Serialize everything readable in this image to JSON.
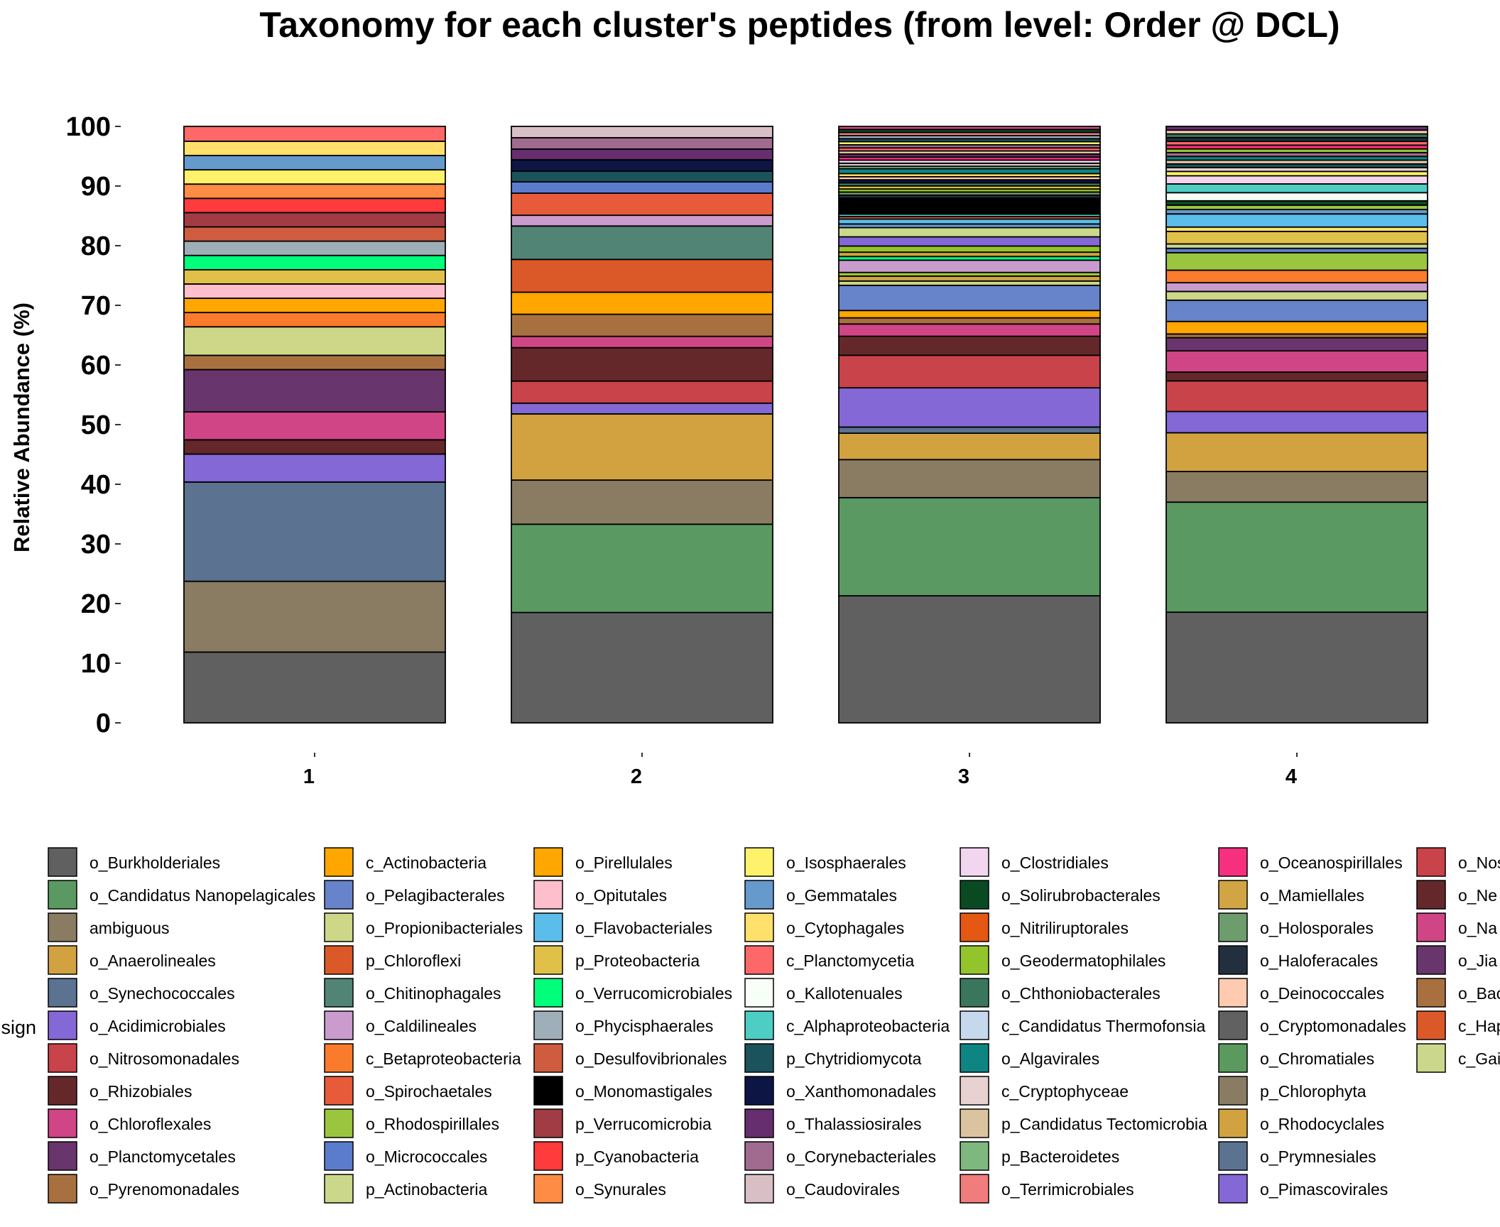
{
  "chart_data": {
    "type": "bar",
    "stacked": true,
    "title": "Taxonomy for each cluster's peptides (from level: Order @ DCL)",
    "ylabel": "Relative Abundance (%)",
    "xlabel": "",
    "ylim": [
      0,
      100
    ],
    "yticks": [
      0,
      10,
      20,
      30,
      40,
      50,
      60,
      70,
      80,
      90,
      100
    ],
    "categories": [
      "1",
      "2",
      "3",
      "4"
    ],
    "legend_title_visible": "sign",
    "legend_position": "bottom",
    "legend": [
      {
        "name": "o_Burkholderiales",
        "color": "#606060"
      },
      {
        "name": "o_Candidatus Nanopelagicales",
        "color": "#5a9a62"
      },
      {
        "name": "ambiguous",
        "color": "#8a7b63"
      },
      {
        "name": "o_Anaerolineales",
        "color": "#d1a23f"
      },
      {
        "name": "o_Synechococcales",
        "color": "#5b7290"
      },
      {
        "name": "o_Acidimicrobiales",
        "color": "#8468d6"
      },
      {
        "name": "o_Nitrosomonadales",
        "color": "#c9434a"
      },
      {
        "name": "o_Rhizobiales",
        "color": "#65282a"
      },
      {
        "name": "o_Chloroflexales",
        "color": "#d04585"
      },
      {
        "name": "o_Planctomycetales",
        "color": "#68356c"
      },
      {
        "name": "o_Pyrenomonadales",
        "color": "#a9703f"
      },
      {
        "name": "c_Actinobacteria",
        "color": "#ffa600"
      },
      {
        "name": "o_Pelagibacterales",
        "color": "#6783c9"
      },
      {
        "name": "o_Propionibacteriales",
        "color": "#cdd787"
      },
      {
        "name": "p_Chloroflexi",
        "color": "#db5828"
      },
      {
        "name": "o_Chitinophagales",
        "color": "#528476"
      },
      {
        "name": "o_Caldilineales",
        "color": "#c99ccd"
      },
      {
        "name": "c_Betaproteobacteria",
        "color": "#fa7b2c"
      },
      {
        "name": "o_Spirochaetales",
        "color": "#e85b3a"
      },
      {
        "name": "o_Rhodospirillales",
        "color": "#9bc53f"
      },
      {
        "name": "o_Micrococcales",
        "color": "#5b7ccc"
      },
      {
        "name": "p_Actinobacteria",
        "color": "#cbd88b"
      },
      {
        "name": "o_Pirellulales",
        "color": "#ffa700"
      },
      {
        "name": "o_Opitutales",
        "color": "#ffbecb"
      },
      {
        "name": "o_Flavobacteriales",
        "color": "#5bbde9"
      },
      {
        "name": "p_Proteobacteria",
        "color": "#e1c04a"
      },
      {
        "name": "o_Verrucomicrobiales",
        "color": "#00ff7a"
      },
      {
        "name": "o_Phycisphaerales",
        "color": "#9eafba"
      },
      {
        "name": "o_Desulfovibrionales",
        "color": "#cf5c3e"
      },
      {
        "name": "o_Monomastigales",
        "color": "#000000"
      },
      {
        "name": "p_Verrucomicrobia",
        "color": "#a13b44"
      },
      {
        "name": "p_Cyanobacteria",
        "color": "#ff3b3b"
      },
      {
        "name": "o_Synurales",
        "color": "#ff8c45"
      },
      {
        "name": "o_Isosphaerales",
        "color": "#fff26b"
      },
      {
        "name": "o_Gemmatales",
        "color": "#6699cc"
      },
      {
        "name": "o_Cytophagales",
        "color": "#ffe06a"
      },
      {
        "name": "c_Planctomycetia",
        "color": "#ff6868"
      },
      {
        "name": "o_Kallotenuales",
        "color": "#f7fff7"
      },
      {
        "name": "c_Alphaproteobacteria",
        "color": "#4ecdc4"
      },
      {
        "name": "p_Chytridiomycota",
        "color": "#1a535c"
      },
      {
        "name": "o_Xanthomonadales",
        "color": "#0d1545"
      },
      {
        "name": "o_Thalassiosirales",
        "color": "#662e6e"
      },
      {
        "name": "o_Corynebacteriales",
        "color": "#a06b8f"
      },
      {
        "name": "o_Caudovirales",
        "color": "#d8bfc6"
      },
      {
        "name": "o_Clostridiales",
        "color": "#f2d5ef"
      },
      {
        "name": "o_Solirubrobacterales",
        "color": "#0a4a22"
      },
      {
        "name": "o_Nitriliruptorales",
        "color": "#e45814"
      },
      {
        "name": "o_Geodermatophilales",
        "color": "#93c42b"
      },
      {
        "name": "o_Chthoniobacterales",
        "color": "#3a765c"
      },
      {
        "name": "c_Candidatus Thermofonsia",
        "color": "#c6d9ec"
      },
      {
        "name": "o_Algavirales",
        "color": "#0f8583"
      },
      {
        "name": "c_Cryptophyceae",
        "color": "#e8d1d1"
      },
      {
        "name": "p_Candidatus Tectomicrobia",
        "color": "#dcc39f"
      },
      {
        "name": "p_Bacteroidetes",
        "color": "#7fb87f"
      },
      {
        "name": "o_Terrimicrobiales",
        "color": "#f07c7c"
      },
      {
        "name": "o_Oceanospirillales",
        "color": "#f72f7f"
      },
      {
        "name": "o_Mamiellales",
        "color": "#d2a544"
      },
      {
        "name": "o_Holosporales",
        "color": "#6d9c6d"
      },
      {
        "name": "o_Haloferacales",
        "color": "#232f3e"
      },
      {
        "name": "o_Deinococcales",
        "color": "#ffcbb0"
      },
      {
        "name": "o_Cryptomonadales",
        "color": "#616161"
      },
      {
        "name": "o_Chromatiales",
        "color": "#5a9a5e"
      },
      {
        "name": "p_Chlorophyta",
        "color": "#8a7b63"
      },
      {
        "name": "o_Rhodocyclales",
        "color": "#d1a23f"
      },
      {
        "name": "o_Prymnesiales",
        "color": "#5b7290"
      },
      {
        "name": "o_Pimascovirales",
        "color": "#8468d6"
      },
      {
        "name": "o_Nos",
        "color": "#c9434a"
      },
      {
        "name": "o_Ne",
        "color": "#65282a"
      },
      {
        "name": "o_Na",
        "color": "#d04585"
      },
      {
        "name": "o_Jia",
        "color": "#68356c"
      },
      {
        "name": "o_Bac",
        "color": "#a9703f"
      },
      {
        "name": "c_Hap",
        "color": "#db5828"
      },
      {
        "name": "c_Gai",
        "color": "#cbd88b"
      }
    ],
    "bars": [
      {
        "category": "1",
        "segments": [
          {
            "name": "o_Burkholderiales",
            "value": 11.9
          },
          {
            "name": "ambiguous",
            "value": 11.9
          },
          {
            "name": "o_Synechococcales",
            "value": 16.7
          },
          {
            "name": "o_Acidimicrobiales",
            "value": 4.7
          },
          {
            "name": "o_Rhizobiales",
            "value": 2.4
          },
          {
            "name": "o_Chloroflexales",
            "value": 4.7
          },
          {
            "name": "o_Planctomycetales",
            "value": 7.1
          },
          {
            "name": "o_Pyrenomonadales",
            "value": 2.4
          },
          {
            "name": "o_Propionibacteriales",
            "value": 4.8
          },
          {
            "name": "c_Betaproteobacteria",
            "value": 2.4
          },
          {
            "name": "c_Actinobacteria",
            "value": 2.4
          },
          {
            "name": "o_Opitutales",
            "value": 2.4
          },
          {
            "name": "p_Proteobacteria",
            "value": 2.4
          },
          {
            "name": "o_Verrucomicrobiales",
            "value": 2.4
          },
          {
            "name": "o_Phycisphaerales",
            "value": 2.4
          },
          {
            "name": "o_Desulfovibrionales",
            "value": 2.4
          },
          {
            "name": "p_Verrucomicrobia",
            "value": 2.4
          },
          {
            "name": "p_Cyanobacteria",
            "value": 2.4
          },
          {
            "name": "o_Synurales",
            "value": 2.4
          },
          {
            "name": "o_Isosphaerales",
            "value": 2.4
          },
          {
            "name": "o_Gemmatales",
            "value": 2.4
          },
          {
            "name": "o_Cytophagales",
            "value": 2.4
          },
          {
            "name": "c_Planctomycetia",
            "value": 2.5
          }
        ]
      },
      {
        "category": "2",
        "segments": [
          {
            "name": "o_Burkholderiales",
            "value": 18.5
          },
          {
            "name": "o_Candidatus Nanopelagicales",
            "value": 14.8
          },
          {
            "name": "ambiguous",
            "value": 7.4
          },
          {
            "name": "o_Anaerolineales",
            "value": 11.1
          },
          {
            "name": "o_Acidimicrobiales",
            "value": 1.8
          },
          {
            "name": "o_Nitrosomonadales",
            "value": 3.7
          },
          {
            "name": "o_Rhizobiales",
            "value": 5.6
          },
          {
            "name": "o_Chloroflexales",
            "value": 1.9
          },
          {
            "name": "o_Pyrenomonadales",
            "value": 3.7
          },
          {
            "name": "c_Actinobacteria",
            "value": 3.7
          },
          {
            "name": "p_Chloroflexi",
            "value": 5.5
          },
          {
            "name": "o_Chitinophagales",
            "value": 5.6
          },
          {
            "name": "o_Caldilineales",
            "value": 1.8
          },
          {
            "name": "o_Spirochaetales",
            "value": 3.7
          },
          {
            "name": "o_Micrococcales",
            "value": 1.9
          },
          {
            "name": "p_Chytridiomycota",
            "value": 1.8
          },
          {
            "name": "o_Xanthomonadales",
            "value": 1.9
          },
          {
            "name": "o_Thalassiosirales",
            "value": 1.8
          },
          {
            "name": "o_Corynebacteriales",
            "value": 1.9
          },
          {
            "name": "o_Caudovirales",
            "value": 1.9
          }
        ]
      },
      {
        "category": "3",
        "segments": [
          {
            "name": "o_Burkholderiales",
            "value": 20.7
          },
          {
            "name": "o_Candidatus Nanopelagicales",
            "value": 16.0
          },
          {
            "name": "ambiguous",
            "value": 6.2
          },
          {
            "name": "o_Anaerolineales",
            "value": 4.3
          },
          {
            "name": "o_Synechococcales",
            "value": 1.0
          },
          {
            "name": "o_Acidimicrobiales",
            "value": 6.4
          },
          {
            "name": "o_Nitrosomonadales",
            "value": 5.3
          },
          {
            "name": "o_Rhizobiales",
            "value": 3.1
          },
          {
            "name": "o_Chloroflexales",
            "value": 2.0
          },
          {
            "name": "o_Pyrenomonadales",
            "value": 1.0
          },
          {
            "name": "c_Actinobacteria",
            "value": 1.2
          },
          {
            "name": "o_Pelagibacterales",
            "value": 4.1
          },
          {
            "name": "o_Propionibacteriales",
            "value": 0.7
          },
          {
            "name": "o_Mamiellales",
            "value": 0.8
          },
          {
            "name": "o_Rhodospirillales",
            "value": 0.6
          },
          {
            "name": "o_Caldilineales",
            "value": 2.0
          },
          {
            "name": "o_Verrucomicrobiales",
            "value": 0.6
          },
          {
            "name": "o_Rhodocyclales",
            "value": 0.7
          },
          {
            "name": "o_Geodermatophilales",
            "value": 1.0
          },
          {
            "name": "o_Pimascovirales",
            "value": 1.5
          },
          {
            "name": "p_Actinobacteria",
            "value": 1.5
          },
          {
            "name": "o_Gemmatales",
            "value": 0.6
          },
          {
            "name": "o_Flavobacteriales",
            "value": 0.8
          },
          {
            "name": "o_Spirochaetales",
            "value": 0.4
          },
          {
            "name": "c_Alphaproteobacteria",
            "value": 0.4
          },
          {
            "name": "o_Monomastigales",
            "value": 2.6
          },
          {
            "name": "o_Haloferacales",
            "value": 0.5
          },
          {
            "name": "o_Holosporales",
            "value": 0.5
          },
          {
            "name": "o_Geodermatophilales",
            "value": 0.5
          },
          {
            "name": "p_Proteobacteria",
            "value": 0.5
          },
          {
            "name": "o_Chthoniobacterales",
            "value": 0.5
          },
          {
            "name": "o_Xanthomonadales",
            "value": 0.5
          },
          {
            "name": "o_Deinococcales",
            "value": 0.5
          },
          {
            "name": "o_Cytophagales",
            "value": 0.5
          },
          {
            "name": "o_Algavirales",
            "value": 0.8
          },
          {
            "name": "p_Bacteroidetes",
            "value": 0.4
          },
          {
            "name": "o_Caudovirales",
            "value": 0.5
          },
          {
            "name": "o_Clostridiales",
            "value": 0.5
          },
          {
            "name": "o_Oceanospirillales",
            "value": 0.5
          },
          {
            "name": "o_Thalassiosirales",
            "value": 0.5
          },
          {
            "name": "p_Candidatus Tectomicrobia",
            "value": 0.5
          },
          {
            "name": "c_Planctomycetia",
            "value": 0.5
          },
          {
            "name": "o_Corynebacteriales",
            "value": 0.5
          },
          {
            "name": "o_Isosphaerales",
            "value": 0.5
          },
          {
            "name": "p_Chytridiomycota",
            "value": 0.5
          },
          {
            "name": "o_Phycisphaerales",
            "value": 0.5
          },
          {
            "name": "o_Terrimicrobiales",
            "value": 0.5
          },
          {
            "name": "o_Solirubrobacterales",
            "value": 0.5
          },
          {
            "name": "o_Chloroflexales",
            "value": 0.5
          }
        ]
      },
      {
        "category": "4",
        "segments": [
          {
            "name": "o_Burkholderiales",
            "value": 17.7
          },
          {
            "name": "o_Candidatus Nanopelagicales",
            "value": 17.6
          },
          {
            "name": "ambiguous",
            "value": 4.9
          },
          {
            "name": "o_Anaerolineales",
            "value": 6.2
          },
          {
            "name": "o_Acidimicrobiales",
            "value": 3.4
          },
          {
            "name": "o_Nitrosomonadales",
            "value": 4.9
          },
          {
            "name": "o_Rhizobiales",
            "value": 1.4
          },
          {
            "name": "o_Chloroflexales",
            "value": 3.4
          },
          {
            "name": "o_Planctomycetales",
            "value": 2.1
          },
          {
            "name": "o_Pyrenomonadales",
            "value": 0.6
          },
          {
            "name": "c_Actinobacteria",
            "value": 2.0
          },
          {
            "name": "o_Pelagibacterales",
            "value": 3.4
          },
          {
            "name": "o_Propionibacteriales",
            "value": 1.4
          },
          {
            "name": "o_Caldilineales",
            "value": 1.4
          },
          {
            "name": "c_Betaproteobacteria",
            "value": 2.0
          },
          {
            "name": "o_Rhodospirillales",
            "value": 2.8
          },
          {
            "name": "o_Micrococcales",
            "value": 0.7
          },
          {
            "name": "p_Actinobacteria",
            "value": 0.7
          },
          {
            "name": "p_Proteobacteria",
            "value": 2.0
          },
          {
            "name": "o_Cytophagales",
            "value": 0.7
          },
          {
            "name": "o_Flavobacteriales",
            "value": 2.1
          },
          {
            "name": "o_Gemmatales",
            "value": 0.7
          },
          {
            "name": "o_Rhodospirillales",
            "value": 0.7
          },
          {
            "name": "o_Solirubrobacterales",
            "value": 0.7
          },
          {
            "name": "o_Kallotenuales",
            "value": 1.3
          },
          {
            "name": "c_Alphaproteobacteria",
            "value": 1.4
          },
          {
            "name": "o_Clostridiales",
            "value": 1.3
          },
          {
            "name": "o_Isosphaerales",
            "value": 0.7
          },
          {
            "name": "c_Cryptophyceae",
            "value": 0.6
          },
          {
            "name": "p_Chytridiomycota",
            "value": 0.6
          },
          {
            "name": "p_Candidatus Tectomicrobia",
            "value": 0.6
          },
          {
            "name": "o_Algavirales",
            "value": 0.6
          },
          {
            "name": "o_Corynebacteriales",
            "value": 0.6
          },
          {
            "name": "o_Geodermatophilales",
            "value": 0.6
          },
          {
            "name": "o_Oceanospirillales",
            "value": 0.6
          },
          {
            "name": "c_Planctomycetia",
            "value": 0.6
          },
          {
            "name": "o_Haloferacales",
            "value": 0.6
          },
          {
            "name": "o_Chthoniobacterales",
            "value": 0.6
          },
          {
            "name": "o_Deinococcales",
            "value": 0.6
          },
          {
            "name": "o_Thalassiosirales",
            "value": 0.6
          }
        ]
      }
    ]
  }
}
